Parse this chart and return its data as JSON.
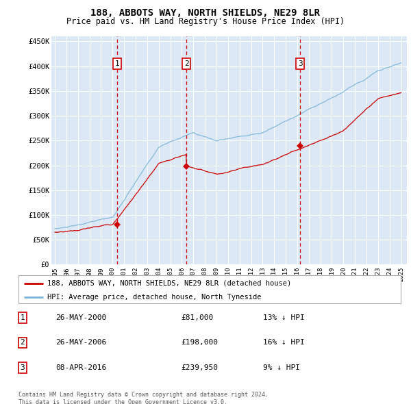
{
  "title": "188, ABBOTS WAY, NORTH SHIELDS, NE29 8LR",
  "subtitle": "Price paid vs. HM Land Registry's House Price Index (HPI)",
  "ylim": [
    0,
    460000
  ],
  "yticks": [
    0,
    50000,
    100000,
    150000,
    200000,
    250000,
    300000,
    350000,
    400000,
    450000
  ],
  "ytick_labels": [
    "£0",
    "£50K",
    "£100K",
    "£150K",
    "£200K",
    "£250K",
    "£300K",
    "£350K",
    "£400K",
    "£450K"
  ],
  "fig_bg_color": "#ffffff",
  "plot_bg_color": "#dce8f5",
  "grid_color": "#ffffff",
  "hpi_color": "#7ab4d8",
  "price_color": "#cc0000",
  "vline_color": "#cc0000",
  "transactions": [
    {
      "date": 2000.4,
      "price": 81000,
      "label": "1"
    },
    {
      "date": 2006.4,
      "price": 198000,
      "label": "2"
    },
    {
      "date": 2016.25,
      "price": 239950,
      "label": "3"
    }
  ],
  "vline_dates": [
    2000.4,
    2006.4,
    2016.25
  ],
  "legend_entries": [
    {
      "label": "188, ABBOTS WAY, NORTH SHIELDS, NE29 8LR (detached house)",
      "color": "#cc0000"
    },
    {
      "label": "HPI: Average price, detached house, North Tyneside",
      "color": "#7ab4d8"
    }
  ],
  "table_rows": [
    {
      "num": "1",
      "date": "26-MAY-2000",
      "price": "£81,000",
      "hpi": "13% ↓ HPI"
    },
    {
      "num": "2",
      "date": "26-MAY-2006",
      "price": "£198,000",
      "hpi": "16% ↓ HPI"
    },
    {
      "num": "3",
      "date": "08-APR-2016",
      "price": "£239,950",
      "hpi": "9% ↓ HPI"
    }
  ],
  "footer": "Contains HM Land Registry data © Crown copyright and database right 2024.\nThis data is licensed under the Open Government Licence v3.0."
}
